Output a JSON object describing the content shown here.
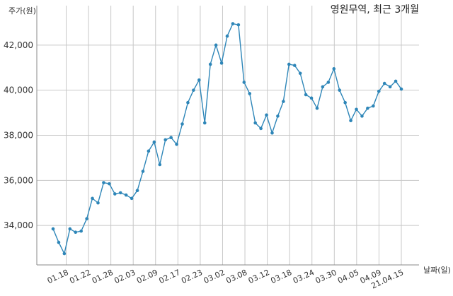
{
  "chart_data": {
    "type": "line",
    "title": "영원무역, 최근 3개월",
    "xlabel": "날짜(일)",
    "ylabel": "주가(원)",
    "x_tick_labels": [
      "01.18",
      "01.22",
      "01.28",
      "02.03",
      "02.09",
      "02.17",
      "02.23",
      "03.02",
      "03.08",
      "03.12",
      "03.18",
      "03.24",
      "03.30",
      "04.05",
      "04.09",
      "21.04.15"
    ],
    "y_ticks": [
      34000,
      36000,
      38000,
      40000,
      42000
    ],
    "y_tick_labels": [
      "34,000",
      "36,000",
      "38,000",
      "40,000",
      "42,000"
    ],
    "ylim": [
      32250,
      43750
    ],
    "grid": true,
    "series": [
      {
        "color": "#2e86b8",
        "values": [
          33850,
          33250,
          32750,
          33850,
          33700,
          33750,
          34300,
          35200,
          35000,
          35900,
          35850,
          35400,
          35450,
          35350,
          35200,
          35550,
          36400,
          37300,
          37700,
          36700,
          37800,
          37900,
          37600,
          38500,
          39450,
          40000,
          40450,
          38550,
          41150,
          42000,
          41200,
          42400,
          42950,
          42900,
          40350,
          39850,
          38550,
          38300,
          38900,
          38100,
          38850,
          39500,
          41150,
          41100,
          40750,
          39800,
          39650,
          39200,
          40150,
          40350,
          40950,
          40000,
          39450,
          38650,
          39150,
          38850,
          39200,
          39300,
          39950,
          40300,
          40150,
          40400,
          40050
        ]
      }
    ]
  }
}
